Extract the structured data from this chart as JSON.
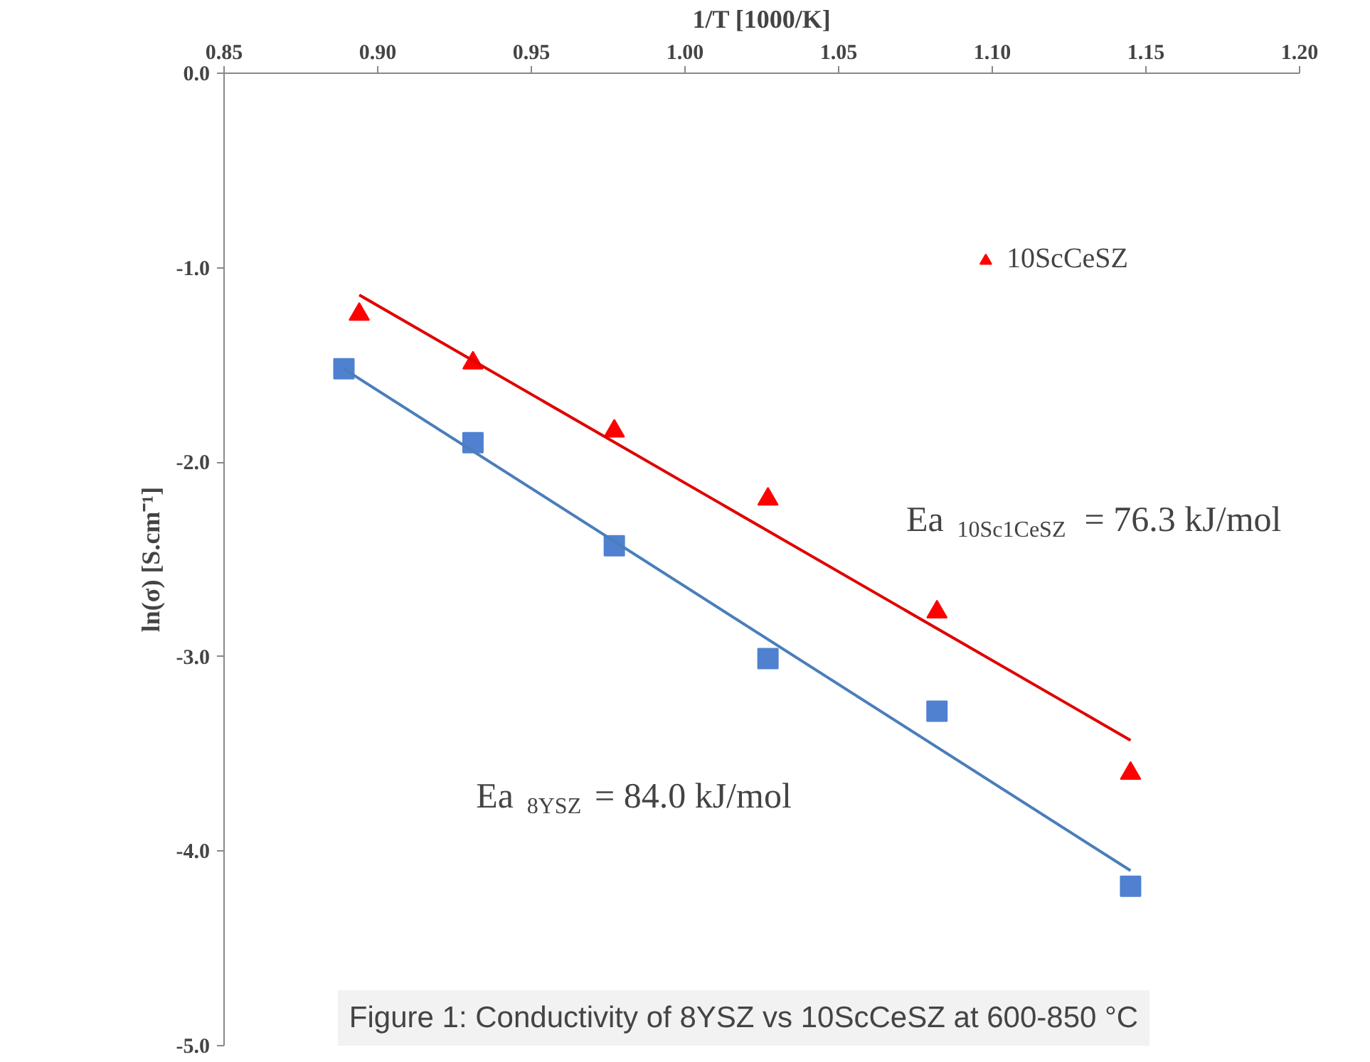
{
  "chart_data": {
    "type": "scatter",
    "xlabel": "1/T [1000/K]",
    "ylabel": "ln(σ) [S.cm⁻¹]",
    "xlim": [
      0.85,
      1.2
    ],
    "ylim": [
      -5.0,
      0.0
    ],
    "xticks": [
      {
        "value": 0.85,
        "label": "0.85"
      },
      {
        "value": 0.9,
        "label": "0.90"
      },
      {
        "value": 0.95,
        "label": "0.95"
      },
      {
        "value": 1.0,
        "label": "1.00"
      },
      {
        "value": 1.05,
        "label": "1.05"
      },
      {
        "value": 1.1,
        "label": "1.10"
      },
      {
        "value": 1.15,
        "label": "1.15"
      },
      {
        "value": 1.2,
        "label": "1.20"
      }
    ],
    "yticks": [
      {
        "value": 0,
        "label": "0.0"
      },
      {
        "value": -1,
        "label": "-1.0"
      },
      {
        "value": -2,
        "label": "-2.0"
      },
      {
        "value": -3,
        "label": "-3.0"
      },
      {
        "value": -4,
        "label": "-4.0"
      },
      {
        "value": -5,
        "label": "-5.0"
      }
    ],
    "legend": "top right",
    "series": [
      {
        "marker": "square",
        "color": "#4f81d0",
        "x": [
          0.889,
          0.931,
          0.977,
          1.027,
          1.082,
          1.145
        ],
        "values": [
          -1.52,
          -1.9,
          -2.43,
          -3.01,
          -3.28,
          -4.18
        ]
      },
      {
        "type": "scatter",
        "marker": "triangle",
        "name": "10ScCeSZ",
        "color": "#ff0000",
        "x": [
          0.894,
          0.931,
          0.977,
          1.027,
          1.082,
          1.145
        ],
        "values": [
          -1.24,
          -1.49,
          -1.84,
          -2.19,
          -2.77,
          -3.6
        ]
      },
      {
        "type": "line",
        "color": "#4a7ebb",
        "x": [
          0.889,
          1.145
        ],
        "values": [
          -1.52,
          -4.1
        ]
      },
      {
        "type": "line",
        "color": "#e00000",
        "x": [
          0.894,
          1.145
        ],
        "values": [
          -1.14,
          -3.43
        ]
      }
    ],
    "annotations": [
      "Ea $_{10Sc1CeSZ}$ = 76.3 kJ/mol",
      "Ea $_{8YSZ}$ = 84.0 kJ/mol",
      "Figure 1: Conductivity of 8YSZ vs 10ScCeSZ at 600-850 °C"
    ]
  }
}
